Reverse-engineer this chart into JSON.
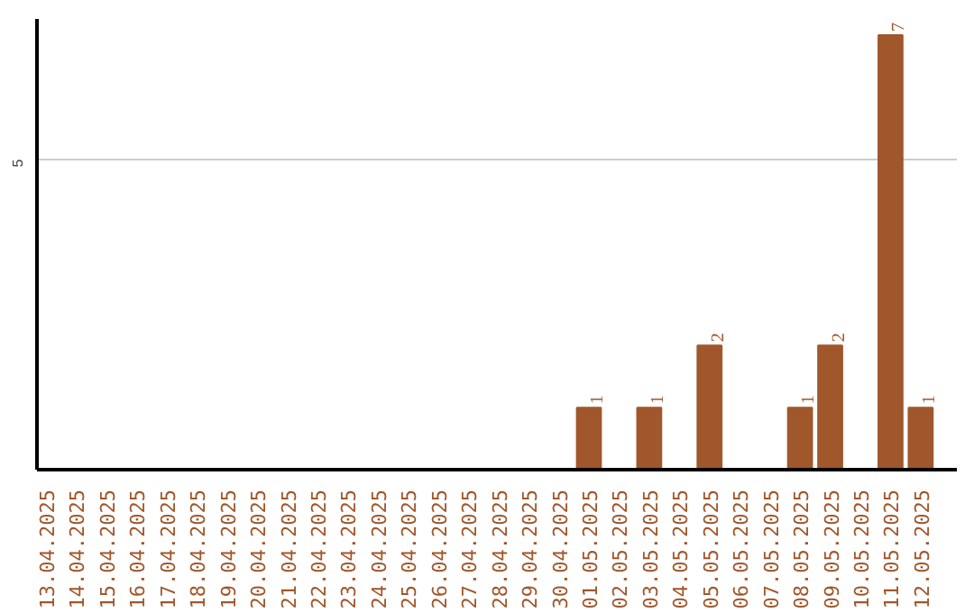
{
  "chart_data": {
    "type": "bar",
    "categories": [
      "13.04.2025",
      "14.04.2025",
      "15.04.2025",
      "16.04.2025",
      "17.04.2025",
      "18.04.2025",
      "19.04.2025",
      "20.04.2025",
      "21.04.2025",
      "22.04.2025",
      "23.04.2025",
      "24.04.2025",
      "25.04.2025",
      "26.04.2025",
      "27.04.2025",
      "28.04.2025",
      "29.04.2025",
      "30.04.2025",
      "01.05.2025",
      "02.05.2025",
      "03.05.2025",
      "04.05.2025",
      "05.05.2025",
      "06.05.2025",
      "07.05.2025",
      "08.05.2025",
      "09.05.2025",
      "10.05.2025",
      "11.05.2025",
      "12.05.2025"
    ],
    "values": [
      null,
      null,
      null,
      null,
      null,
      null,
      null,
      null,
      null,
      null,
      null,
      null,
      null,
      null,
      null,
      null,
      null,
      null,
      1,
      null,
      1,
      null,
      2,
      null,
      null,
      1,
      2,
      null,
      7,
      1
    ],
    "color": "#a0572b",
    "ylim": [
      0,
      7.26
    ],
    "yticks": [
      5
    ],
    "grid": "y",
    "data_labels": true
  }
}
